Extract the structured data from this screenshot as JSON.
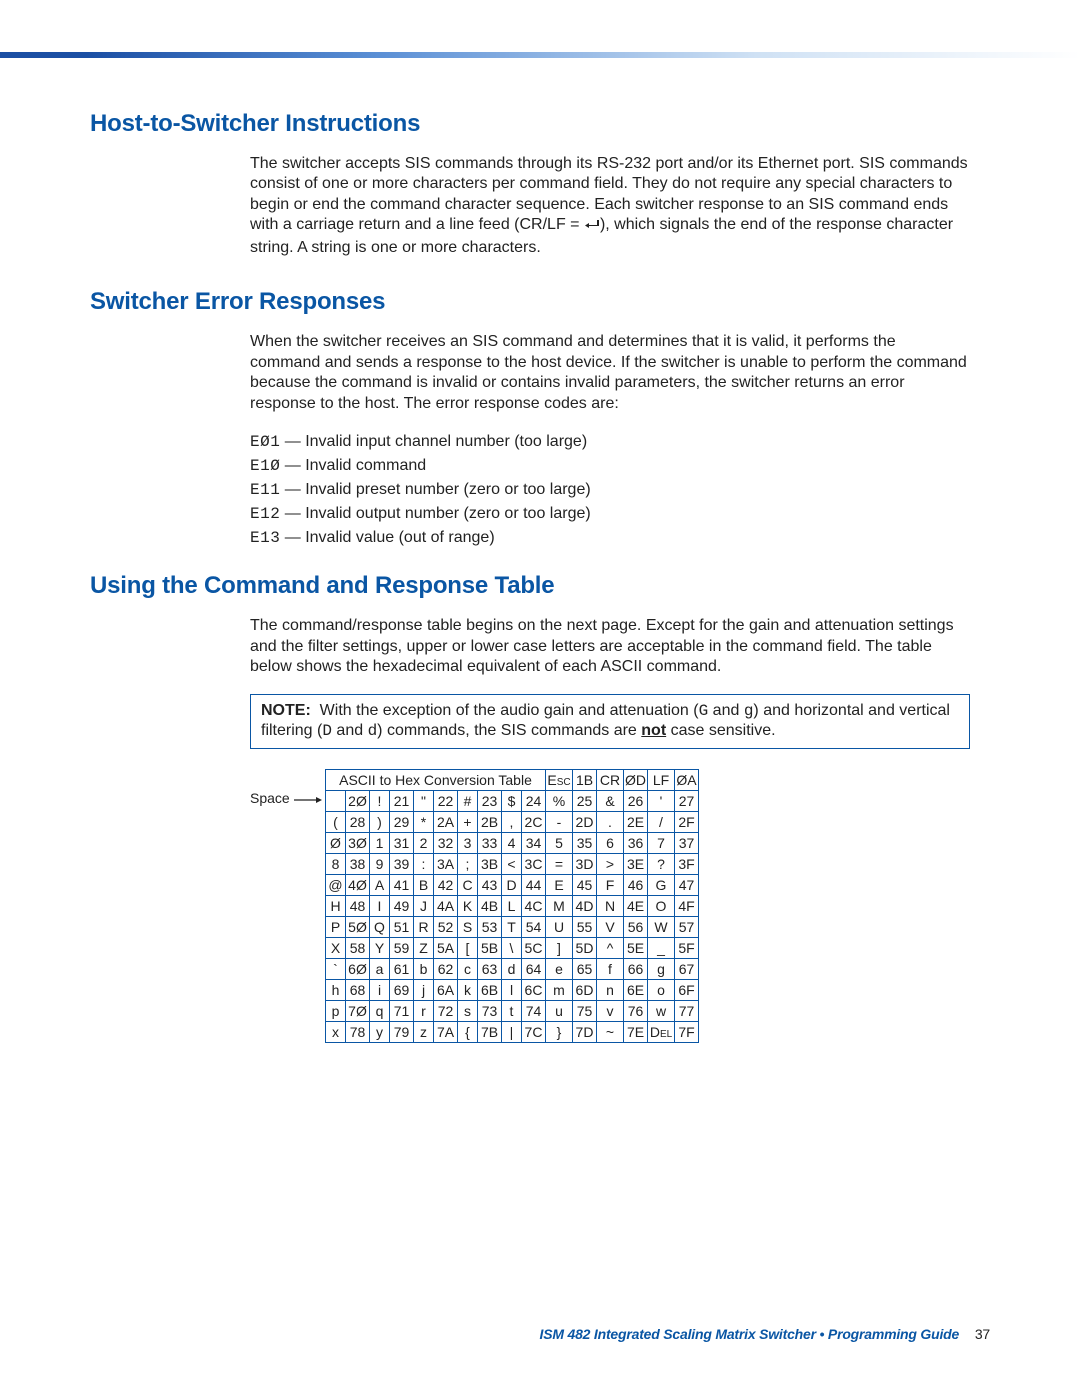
{
  "sections": {
    "s1": {
      "title": "Host-to-Switcher Instructions",
      "para": "The switcher accepts SIS commands through its RS-232 port and/or its Ethernet port.  SIS commands consist of one or more characters per command field.  They do not require any special characters to begin or end the command character sequence.  Each switcher response to an SIS command ends with a carriage return and a line feed (CR/LF = ",
      "para_tail": "), which signals the end of the response character string.  A string is one or more characters."
    },
    "s2": {
      "title": "Switcher Error Responses",
      "para": "When the switcher receives an SIS command and determines that it is valid, it performs the command and sends a response to the host device.  If the switcher is unable to perform the command because the command is invalid or contains invalid parameters, the switcher returns an error response to the host.  The error response codes are:",
      "errors": [
        {
          "code": "EØ1",
          "desc": "Invalid input channel number (too large)"
        },
        {
          "code": "E1Ø",
          "desc": "Invalid command"
        },
        {
          "code": "E11",
          "desc": "Invalid preset number (zero or too large)"
        },
        {
          "code": "E12",
          "desc": "Invalid output number (zero or too large)"
        },
        {
          "code": "E13",
          "desc": "Invalid value (out of range)"
        }
      ]
    },
    "s3": {
      "title": "Using the Command and Response Table",
      "para": "The command/response table begins on the next page. Except for the gain and attenuation settings and the filter settings, upper or lower case letters are acceptable in the command field. The table below shows the hexadecimal equivalent of each ASCII command.",
      "note_label": "NOTE:",
      "note_a": "With the exception of the audio gain and attenuation (",
      "note_g1": "G",
      "note_and1": " and ",
      "note_g2": "g",
      "note_b": ") and horizontal and vertical filtering (",
      "note_d1": "D",
      "note_and2": " and ",
      "note_d2": "d",
      "note_c": ") commands, the SIS commands are ",
      "note_not": "not",
      "note_d": " case sensitive.",
      "space_label": "Space",
      "ascii_title": "ASCII to Hex  Conversion Table",
      "ascii_header_cells": [
        {
          "ch": "Esc",
          "hx": "1B"
        },
        {
          "ch": "CR",
          "hx": "ØD"
        },
        {
          "ch": "LF",
          "hx": "ØA"
        }
      ],
      "ascii_rows": [
        [
          {
            "ch": "",
            "hx": "2Ø"
          },
          {
            "ch": "!",
            "hx": "21"
          },
          {
            "ch": "\"",
            "hx": "22"
          },
          {
            "ch": "#",
            "hx": "23"
          },
          {
            "ch": "$",
            "hx": "24"
          },
          {
            "ch": "%",
            "hx": "25"
          },
          {
            "ch": "&",
            "hx": "26"
          },
          {
            "ch": "'",
            "hx": "27"
          }
        ],
        [
          {
            "ch": "(",
            "hx": "28"
          },
          {
            "ch": ")",
            "hx": "29"
          },
          {
            "ch": "*",
            "hx": "2A"
          },
          {
            "ch": "+",
            "hx": "2B"
          },
          {
            "ch": ",",
            "hx": "2C"
          },
          {
            "ch": "-",
            "hx": "2D"
          },
          {
            "ch": ".",
            "hx": "2E"
          },
          {
            "ch": "/",
            "hx": "2F"
          }
        ],
        [
          {
            "ch": "Ø",
            "hx": "3Ø"
          },
          {
            "ch": "1",
            "hx": "31"
          },
          {
            "ch": "2",
            "hx": "32"
          },
          {
            "ch": "3",
            "hx": "33"
          },
          {
            "ch": "4",
            "hx": "34"
          },
          {
            "ch": "5",
            "hx": "35"
          },
          {
            "ch": "6",
            "hx": "36"
          },
          {
            "ch": "7",
            "hx": "37"
          }
        ],
        [
          {
            "ch": "8",
            "hx": "38"
          },
          {
            "ch": "9",
            "hx": "39"
          },
          {
            "ch": ":",
            "hx": "3A"
          },
          {
            "ch": ";",
            "hx": "3B"
          },
          {
            "ch": "<",
            "hx": "3C"
          },
          {
            "ch": "=",
            "hx": "3D"
          },
          {
            "ch": ">",
            "hx": "3E"
          },
          {
            "ch": "?",
            "hx": "3F"
          }
        ],
        [
          {
            "ch": "@",
            "hx": "4Ø"
          },
          {
            "ch": "A",
            "hx": "41"
          },
          {
            "ch": "B",
            "hx": "42"
          },
          {
            "ch": "C",
            "hx": "43"
          },
          {
            "ch": "D",
            "hx": "44"
          },
          {
            "ch": "E",
            "hx": "45"
          },
          {
            "ch": "F",
            "hx": "46"
          },
          {
            "ch": "G",
            "hx": "47"
          }
        ],
        [
          {
            "ch": "H",
            "hx": "48"
          },
          {
            "ch": "I",
            "hx": "49"
          },
          {
            "ch": "J",
            "hx": "4A"
          },
          {
            "ch": "K",
            "hx": "4B"
          },
          {
            "ch": "L",
            "hx": "4C"
          },
          {
            "ch": "M",
            "hx": "4D"
          },
          {
            "ch": "N",
            "hx": "4E"
          },
          {
            "ch": "O",
            "hx": "4F"
          }
        ],
        [
          {
            "ch": "P",
            "hx": "5Ø"
          },
          {
            "ch": "Q",
            "hx": "51"
          },
          {
            "ch": "R",
            "hx": "52"
          },
          {
            "ch": "S",
            "hx": "53"
          },
          {
            "ch": "T",
            "hx": "54"
          },
          {
            "ch": "U",
            "hx": "55"
          },
          {
            "ch": "V",
            "hx": "56"
          },
          {
            "ch": "W",
            "hx": "57"
          }
        ],
        [
          {
            "ch": "X",
            "hx": "58"
          },
          {
            "ch": "Y",
            "hx": "59"
          },
          {
            "ch": "Z",
            "hx": "5A"
          },
          {
            "ch": "[",
            "hx": "5B"
          },
          {
            "ch": "\\",
            "hx": "5C"
          },
          {
            "ch": "]",
            "hx": "5D"
          },
          {
            "ch": "^",
            "hx": "5E"
          },
          {
            "ch": "_",
            "hx": "5F"
          }
        ],
        [
          {
            "ch": "`",
            "hx": "6Ø"
          },
          {
            "ch": "a",
            "hx": "61"
          },
          {
            "ch": "b",
            "hx": "62"
          },
          {
            "ch": "c",
            "hx": "63"
          },
          {
            "ch": "d",
            "hx": "64"
          },
          {
            "ch": "e",
            "hx": "65"
          },
          {
            "ch": "f",
            "hx": "66"
          },
          {
            "ch": "g",
            "hx": "67"
          }
        ],
        [
          {
            "ch": "h",
            "hx": "68"
          },
          {
            "ch": "i",
            "hx": "69"
          },
          {
            "ch": "j",
            "hx": "6A"
          },
          {
            "ch": "k",
            "hx": "6B"
          },
          {
            "ch": "l",
            "hx": "6C"
          },
          {
            "ch": "m",
            "hx": "6D"
          },
          {
            "ch": "n",
            "hx": "6E"
          },
          {
            "ch": "o",
            "hx": "6F"
          }
        ],
        [
          {
            "ch": "p",
            "hx": "7Ø"
          },
          {
            "ch": "q",
            "hx": "71"
          },
          {
            "ch": "r",
            "hx": "72"
          },
          {
            "ch": "s",
            "hx": "73"
          },
          {
            "ch": "t",
            "hx": "74"
          },
          {
            "ch": "u",
            "hx": "75"
          },
          {
            "ch": "v",
            "hx": "76"
          },
          {
            "ch": "w",
            "hx": "77"
          }
        ],
        [
          {
            "ch": "x",
            "hx": "78"
          },
          {
            "ch": "y",
            "hx": "79"
          },
          {
            "ch": "z",
            "hx": "7A"
          },
          {
            "ch": "{",
            "hx": "7B"
          },
          {
            "ch": "|",
            "hx": "7C"
          },
          {
            "ch": "}",
            "hx": "7D"
          },
          {
            "ch": "~",
            "hx": "7E"
          },
          {
            "ch": "Del",
            "hx": "7F"
          }
        ]
      ]
    }
  },
  "footer": {
    "text": "ISM 482 Integrated Scaling Matrix Switcher • Programming Guide",
    "page": "37"
  },
  "colors": {
    "heading": "#0a56a4",
    "border": "#0a56a4",
    "text": "#222222",
    "gradient_start": "#1b4fa4",
    "gradient_end": "#ffffff"
  }
}
